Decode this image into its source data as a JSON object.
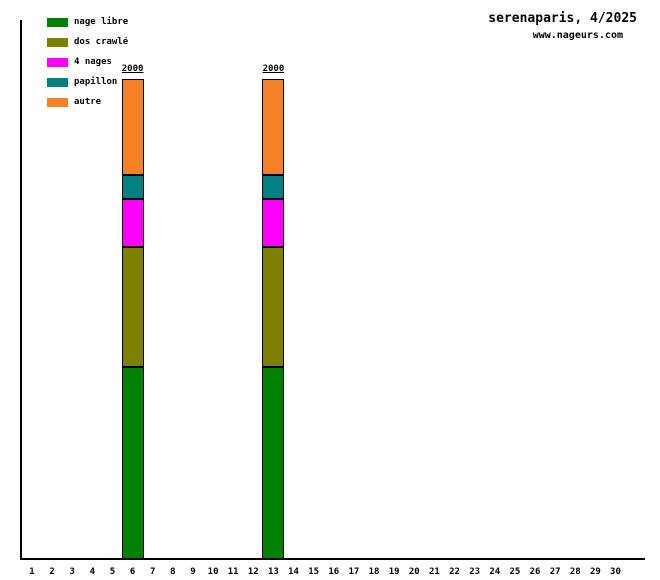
{
  "title": "serenaparis, 4/2025",
  "subtitle": "www.nageurs.com",
  "legend": [
    {
      "label": "nage libre",
      "color": "#008000"
    },
    {
      "label": "dos crawlé",
      "color": "#808000"
    },
    {
      "label": "4 nages",
      "color": "#ff00ff"
    },
    {
      "label": "papillon",
      "color": "#008080"
    },
    {
      "label": "autre",
      "color": "#f68026"
    }
  ],
  "chart_data": {
    "type": "bar",
    "stacked": true,
    "title": "serenaparis, 4/2025",
    "subtitle": "www.nageurs.com",
    "xlabel": "",
    "ylabel": "",
    "grid": false,
    "legend_position": "top-left",
    "ylim": [
      0,
      2250
    ],
    "categories": [
      1,
      2,
      3,
      4,
      5,
      6,
      7,
      8,
      9,
      10,
      11,
      12,
      13,
      14,
      15,
      16,
      17,
      18,
      19,
      20,
      21,
      22,
      23,
      24,
      25,
      26,
      27,
      28,
      29,
      30
    ],
    "series": [
      {
        "name": "nage libre",
        "color": "#008000",
        "values": [
          0,
          0,
          0,
          0,
          0,
          800,
          0,
          0,
          0,
          0,
          0,
          0,
          800,
          0,
          0,
          0,
          0,
          0,
          0,
          0,
          0,
          0,
          0,
          0,
          0,
          0,
          0,
          0,
          0,
          0
        ]
      },
      {
        "name": "dos crawlé",
        "color": "#808000",
        "values": [
          0,
          0,
          0,
          0,
          0,
          500,
          0,
          0,
          0,
          0,
          0,
          0,
          500,
          0,
          0,
          0,
          0,
          0,
          0,
          0,
          0,
          0,
          0,
          0,
          0,
          0,
          0,
          0,
          0,
          0
        ]
      },
      {
        "name": "4 nages",
        "color": "#ff00ff",
        "values": [
          0,
          0,
          0,
          0,
          0,
          200,
          0,
          0,
          0,
          0,
          0,
          0,
          200,
          0,
          0,
          0,
          0,
          0,
          0,
          0,
          0,
          0,
          0,
          0,
          0,
          0,
          0,
          0,
          0,
          0
        ]
      },
      {
        "name": "papillon",
        "color": "#008080",
        "values": [
          0,
          0,
          0,
          0,
          0,
          100,
          0,
          0,
          0,
          0,
          0,
          0,
          100,
          0,
          0,
          0,
          0,
          0,
          0,
          0,
          0,
          0,
          0,
          0,
          0,
          0,
          0,
          0,
          0,
          0
        ]
      },
      {
        "name": "autre",
        "color": "#f68026",
        "values": [
          0,
          0,
          0,
          0,
          0,
          400,
          0,
          0,
          0,
          0,
          0,
          0,
          400,
          0,
          0,
          0,
          0,
          0,
          0,
          0,
          0,
          0,
          0,
          0,
          0,
          0,
          0,
          0,
          0,
          0
        ]
      }
    ],
    "bar_totals": [
      {
        "category": 6,
        "label": "2000"
      },
      {
        "category": 13,
        "label": "2000"
      }
    ]
  }
}
